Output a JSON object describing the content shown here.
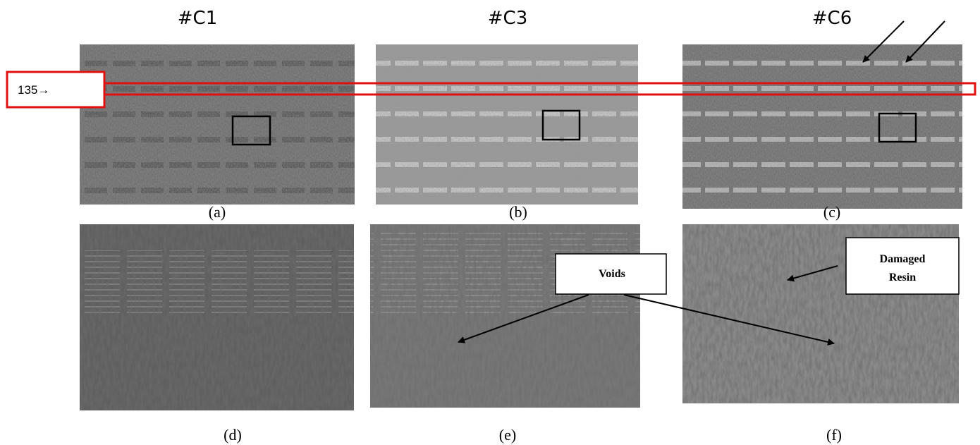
{
  "columns": [
    {
      "title": "#C1"
    },
    {
      "title": "#C3"
    },
    {
      "title": "#C6"
    }
  ],
  "panels": [
    {
      "label": "(a)"
    },
    {
      "label": "(b)"
    },
    {
      "label": "(c)"
    },
    {
      "label": "(d)"
    },
    {
      "label": "(e)"
    },
    {
      "label": "(f)"
    }
  ],
  "annotations": {
    "row_marker": "135→",
    "voids": "Voids",
    "damaged_resin": [
      "Damaged",
      "Resin"
    ]
  }
}
